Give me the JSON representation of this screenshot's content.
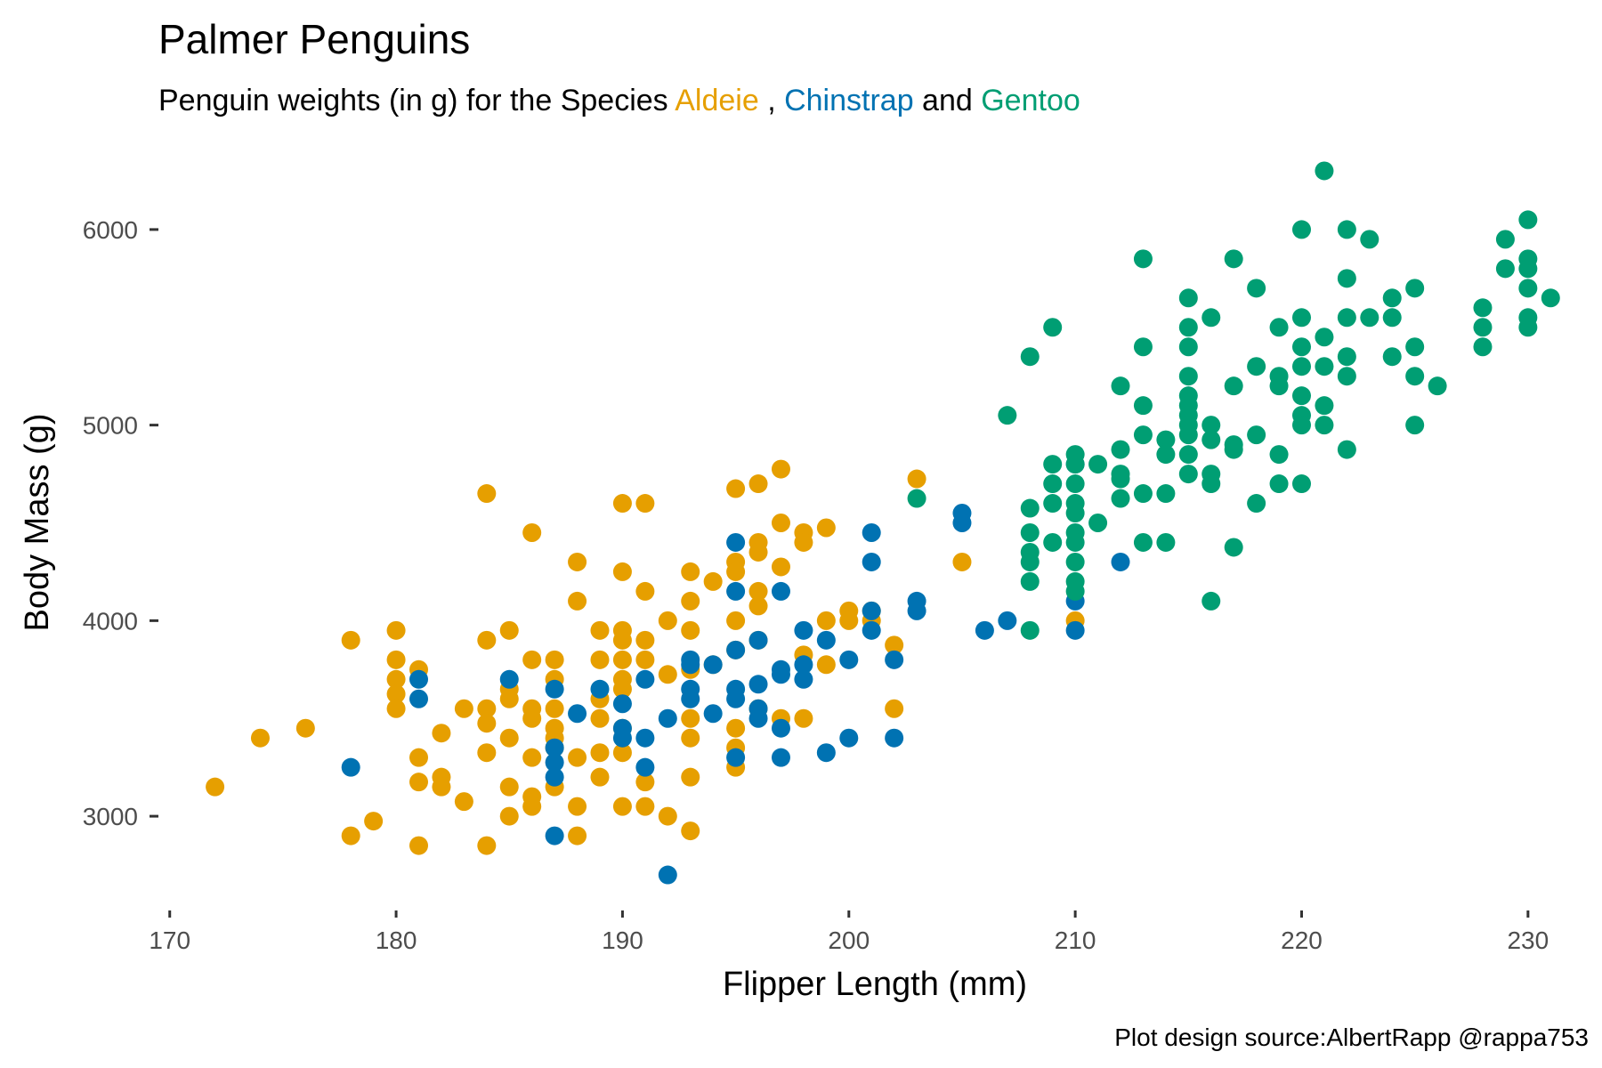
{
  "chart_data": {
    "type": "scatter",
    "title": "Palmer Penguins",
    "subtitle": {
      "prefix": "Penguin weights (in g) for the Species ",
      "species1": "Aldeie",
      "sep1": " , ",
      "species2": "Chinstrap",
      "sep2": "  and ",
      "species3": "Gentoo"
    },
    "xlabel": "Flipper Length (mm)",
    "ylabel": "Body Mass (g)",
    "caption": "Plot design source:AlbertRapp @rappa753",
    "xlim": [
      169.5,
      231.5
    ],
    "ylim": [
      2600,
      6400
    ],
    "xticks": [
      170,
      180,
      190,
      200,
      210,
      220,
      230
    ],
    "yticks": [
      3000,
      4000,
      5000,
      6000
    ],
    "grid": false,
    "legend": "none",
    "colors": {
      "Adelie": "#E69F00",
      "Chinstrap": "#0072B2",
      "Gentoo": "#009E73"
    },
    "series": [
      {
        "key": "Adelie",
        "color": "#E69F00",
        "points": [
          [
            172,
            3150
          ],
          [
            174,
            3400
          ],
          [
            176,
            3450
          ],
          [
            178,
            3900
          ],
          [
            178,
            2900
          ],
          [
            179,
            2975
          ],
          [
            180,
            3950
          ],
          [
            180,
            3800
          ],
          [
            180,
            3700
          ],
          [
            180,
            3625
          ],
          [
            180,
            3550
          ],
          [
            181,
            3750
          ],
          [
            181,
            3300
          ],
          [
            181,
            3175
          ],
          [
            181,
            2850
          ],
          [
            182,
            3425
          ],
          [
            182,
            3200
          ],
          [
            182,
            3150
          ],
          [
            183,
            3550
          ],
          [
            183,
            3075
          ],
          [
            184,
            4650
          ],
          [
            184,
            3900
          ],
          [
            184,
            3550
          ],
          [
            184,
            3475
          ],
          [
            184,
            3325
          ],
          [
            184,
            2850
          ],
          [
            185,
            3950
          ],
          [
            185,
            3650
          ],
          [
            185,
            3600
          ],
          [
            185,
            3400
          ],
          [
            185,
            3150
          ],
          [
            185,
            3000
          ],
          [
            186,
            4450
          ],
          [
            186,
            3800
          ],
          [
            186,
            3550
          ],
          [
            186,
            3500
          ],
          [
            186,
            3300
          ],
          [
            186,
            3100
          ],
          [
            186,
            3050
          ],
          [
            187,
            3800
          ],
          [
            187,
            3700
          ],
          [
            187,
            3550
          ],
          [
            187,
            3450
          ],
          [
            187,
            3400
          ],
          [
            187,
            3350
          ],
          [
            187,
            3150
          ],
          [
            188,
            4300
          ],
          [
            188,
            4100
          ],
          [
            188,
            3300
          ],
          [
            188,
            3050
          ],
          [
            188,
            2900
          ],
          [
            189,
            3950
          ],
          [
            189,
            3800
          ],
          [
            189,
            3600
          ],
          [
            189,
            3500
          ],
          [
            189,
            3325
          ],
          [
            189,
            3200
          ],
          [
            190,
            4600
          ],
          [
            190,
            4250
          ],
          [
            190,
            3950
          ],
          [
            190,
            3900
          ],
          [
            190,
            3800
          ],
          [
            190,
            3700
          ],
          [
            190,
            3650
          ],
          [
            190,
            3450
          ],
          [
            190,
            3325
          ],
          [
            190,
            3050
          ],
          [
            191,
            4600
          ],
          [
            191,
            4150
          ],
          [
            191,
            3900
          ],
          [
            191,
            3800
          ],
          [
            191,
            3175
          ],
          [
            191,
            3050
          ],
          [
            192,
            4000
          ],
          [
            192,
            3725
          ],
          [
            192,
            3000
          ],
          [
            193,
            4250
          ],
          [
            193,
            4100
          ],
          [
            193,
            3950
          ],
          [
            193,
            3750
          ],
          [
            193,
            3500
          ],
          [
            193,
            3400
          ],
          [
            193,
            3200
          ],
          [
            193,
            2925
          ],
          [
            194,
            4200
          ],
          [
            194,
            3775
          ],
          [
            195,
            4675
          ],
          [
            195,
            4300
          ],
          [
            195,
            4250
          ],
          [
            195,
            4000
          ],
          [
            195,
            3850
          ],
          [
            195,
            3450
          ],
          [
            195,
            3350
          ],
          [
            195,
            3250
          ],
          [
            196,
            4700
          ],
          [
            196,
            4400
          ],
          [
            196,
            4350
          ],
          [
            196,
            4150
          ],
          [
            196,
            4075
          ],
          [
            196,
            3900
          ],
          [
            196,
            3550
          ],
          [
            197,
            4775
          ],
          [
            197,
            4500
          ],
          [
            197,
            4275
          ],
          [
            197,
            3500
          ],
          [
            198,
            4450
          ],
          [
            198,
            4400
          ],
          [
            198,
            3825
          ],
          [
            198,
            3500
          ],
          [
            199,
            4475
          ],
          [
            199,
            4000
          ],
          [
            199,
            3775
          ],
          [
            200,
            4050
          ],
          [
            200,
            4000
          ],
          [
            201,
            4050
          ],
          [
            201,
            4000
          ],
          [
            202,
            3875
          ],
          [
            202,
            3550
          ],
          [
            203,
            4725
          ],
          [
            205,
            4300
          ],
          [
            210,
            4000
          ]
        ]
      },
      {
        "key": "Chinstrap",
        "color": "#0072B2",
        "points": [
          [
            178,
            3250
          ],
          [
            181,
            3700
          ],
          [
            181,
            3600
          ],
          [
            185,
            3700
          ],
          [
            187,
            3650
          ],
          [
            187,
            3350
          ],
          [
            187,
            3275
          ],
          [
            187,
            3200
          ],
          [
            187,
            2900
          ],
          [
            188,
            3525
          ],
          [
            189,
            3650
          ],
          [
            190,
            3575
          ],
          [
            190,
            3450
          ],
          [
            190,
            3400
          ],
          [
            191,
            3700
          ],
          [
            191,
            3400
          ],
          [
            191,
            3250
          ],
          [
            192,
            3500
          ],
          [
            192,
            2700
          ],
          [
            193,
            3800
          ],
          [
            193,
            3775
          ],
          [
            193,
            3650
          ],
          [
            193,
            3600
          ],
          [
            194,
            3775
          ],
          [
            194,
            3525
          ],
          [
            195,
            4400
          ],
          [
            195,
            4150
          ],
          [
            195,
            3850
          ],
          [
            195,
            3650
          ],
          [
            195,
            3600
          ],
          [
            195,
            3300
          ],
          [
            196,
            3900
          ],
          [
            196,
            3675
          ],
          [
            196,
            3550
          ],
          [
            196,
            3500
          ],
          [
            197,
            4150
          ],
          [
            197,
            3750
          ],
          [
            197,
            3725
          ],
          [
            197,
            3450
          ],
          [
            197,
            3300
          ],
          [
            198,
            3950
          ],
          [
            198,
            3775
          ],
          [
            198,
            3700
          ],
          [
            199,
            3900
          ],
          [
            199,
            3325
          ],
          [
            200,
            3800
          ],
          [
            200,
            3400
          ],
          [
            201,
            4450
          ],
          [
            201,
            4300
          ],
          [
            201,
            4050
          ],
          [
            201,
            3950
          ],
          [
            202,
            3800
          ],
          [
            202,
            3400
          ],
          [
            203,
            4100
          ],
          [
            203,
            4050
          ],
          [
            205,
            4550
          ],
          [
            205,
            4500
          ],
          [
            206,
            3950
          ],
          [
            207,
            4000
          ],
          [
            210,
            4800
          ],
          [
            210,
            4100
          ],
          [
            210,
            3950
          ],
          [
            212,
            4300
          ]
        ]
      },
      {
        "key": "Gentoo",
        "color": "#009E73",
        "points": [
          [
            203,
            4625
          ],
          [
            207,
            5050
          ],
          [
            208,
            5350
          ],
          [
            208,
            4575
          ],
          [
            208,
            4450
          ],
          [
            208,
            4350
          ],
          [
            208,
            4300
          ],
          [
            208,
            4200
          ],
          [
            208,
            3950
          ],
          [
            209,
            5500
          ],
          [
            209,
            4800
          ],
          [
            209,
            4700
          ],
          [
            209,
            4600
          ],
          [
            209,
            4400
          ],
          [
            210,
            4850
          ],
          [
            210,
            4800
          ],
          [
            210,
            4700
          ],
          [
            210,
            4600
          ],
          [
            210,
            4550
          ],
          [
            210,
            4450
          ],
          [
            210,
            4400
          ],
          [
            210,
            4300
          ],
          [
            210,
            4200
          ],
          [
            210,
            4150
          ],
          [
            211,
            4800
          ],
          [
            211,
            4500
          ],
          [
            212,
            5200
          ],
          [
            212,
            4875
          ],
          [
            212,
            4750
          ],
          [
            212,
            4725
          ],
          [
            212,
            4625
          ],
          [
            213,
            5850
          ],
          [
            213,
            5400
          ],
          [
            213,
            5100
          ],
          [
            213,
            4950
          ],
          [
            213,
            4650
          ],
          [
            213,
            4400
          ],
          [
            214,
            4925
          ],
          [
            214,
            4850
          ],
          [
            214,
            4650
          ],
          [
            214,
            4400
          ],
          [
            215,
            5650
          ],
          [
            215,
            5500
          ],
          [
            215,
            5400
          ],
          [
            215,
            5250
          ],
          [
            215,
            5150
          ],
          [
            215,
            5100
          ],
          [
            215,
            5050
          ],
          [
            215,
            5000
          ],
          [
            215,
            4950
          ],
          [
            215,
            4850
          ],
          [
            215,
            4750
          ],
          [
            216,
            5550
          ],
          [
            216,
            5000
          ],
          [
            216,
            4925
          ],
          [
            216,
            4750
          ],
          [
            216,
            4700
          ],
          [
            216,
            4100
          ],
          [
            217,
            5850
          ],
          [
            217,
            5200
          ],
          [
            217,
            4900
          ],
          [
            217,
            4875
          ],
          [
            217,
            4375
          ],
          [
            218,
            5700
          ],
          [
            218,
            5300
          ],
          [
            218,
            4950
          ],
          [
            218,
            4600
          ],
          [
            219,
            5500
          ],
          [
            219,
            5250
          ],
          [
            219,
            5200
          ],
          [
            219,
            4850
          ],
          [
            219,
            4700
          ],
          [
            220,
            6000
          ],
          [
            220,
            5550
          ],
          [
            220,
            5400
          ],
          [
            220,
            5300
          ],
          [
            220,
            5150
          ],
          [
            220,
            5050
          ],
          [
            220,
            5000
          ],
          [
            220,
            4700
          ],
          [
            221,
            6300
          ],
          [
            221,
            5450
          ],
          [
            221,
            5300
          ],
          [
            221,
            5100
          ],
          [
            221,
            5000
          ],
          [
            222,
            6000
          ],
          [
            222,
            5750
          ],
          [
            222,
            5550
          ],
          [
            222,
            5350
          ],
          [
            222,
            5250
          ],
          [
            222,
            4875
          ],
          [
            223,
            5950
          ],
          [
            223,
            5550
          ],
          [
            224,
            5650
          ],
          [
            224,
            5550
          ],
          [
            224,
            5350
          ],
          [
            225,
            5700
          ],
          [
            225,
            5400
          ],
          [
            225,
            5250
          ],
          [
            225,
            5000
          ],
          [
            226,
            5200
          ],
          [
            228,
            5600
          ],
          [
            228,
            5500
          ],
          [
            228,
            5400
          ],
          [
            229,
            5950
          ],
          [
            229,
            5800
          ],
          [
            230,
            6050
          ],
          [
            230,
            5850
          ],
          [
            230,
            5800
          ],
          [
            230,
            5700
          ],
          [
            230,
            5550
          ],
          [
            230,
            5500
          ],
          [
            231,
            5650
          ]
        ]
      }
    ]
  }
}
